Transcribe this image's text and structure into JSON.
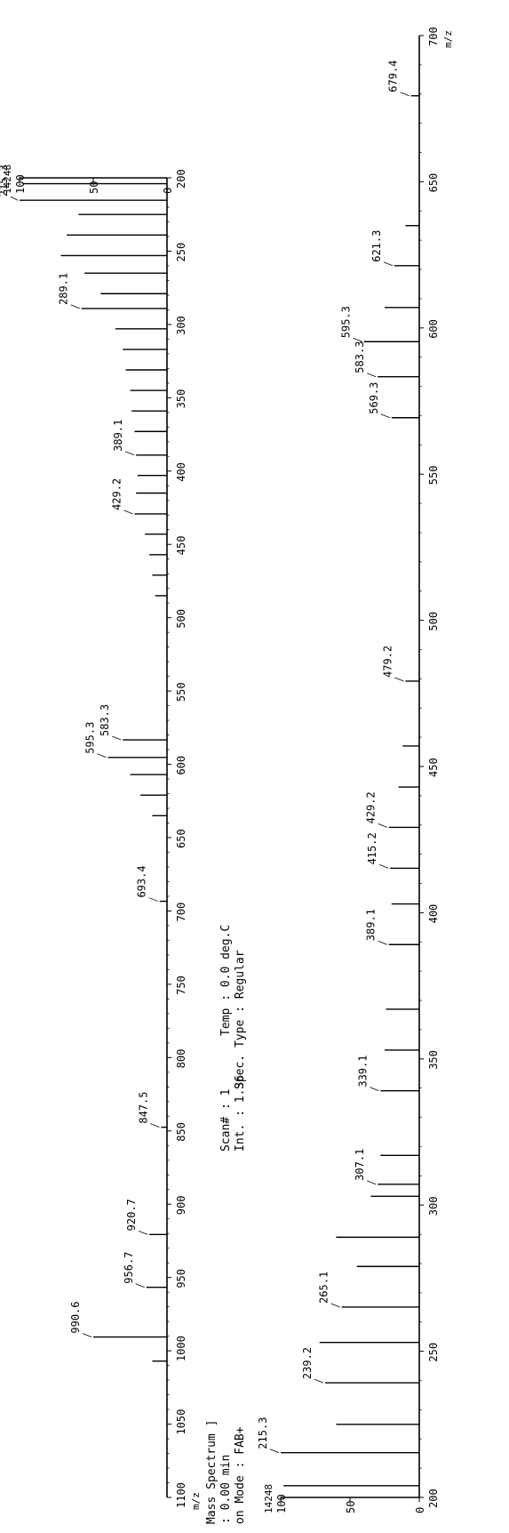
{
  "header": {
    "line1": "Mass Spectrum ]",
    "line2": ": 0.00 min",
    "line3": "on Mode : FAB+",
    "scan": "Scan# : 1",
    "int": "Int. : 1.36",
    "temp": "Temp : 0.0 deg.C",
    "spec_type": "Spec. Type : Regular"
  },
  "chart_data": [
    {
      "type": "bar",
      "title": "",
      "xlabel": "m/z",
      "ylabel": "",
      "xlim": [
        200,
        1100
      ],
      "ylim": [
        0,
        100
      ],
      "max_intensity_label": "14248",
      "xticks": [
        "200",
        "250",
        "300",
        "350",
        "400",
        "450",
        "500",
        "550",
        "600",
        "650",
        "700",
        "750",
        "800",
        "850",
        "900",
        "950",
        "1000",
        "1050",
        "1100"
      ],
      "yticks": [
        "0",
        "50",
        "100"
      ],
      "peaks": [
        {
          "x": 204,
          "y": 98
        },
        {
          "x": 215.3,
          "y": 100
        },
        {
          "x": 225,
          "y": 60
        },
        {
          "x": 239,
          "y": 68
        },
        {
          "x": 253,
          "y": 72
        },
        {
          "x": 265,
          "y": 56
        },
        {
          "x": 279,
          "y": 45
        },
        {
          "x": 289.1,
          "y": 58
        },
        {
          "x": 303,
          "y": 35
        },
        {
          "x": 317,
          "y": 30
        },
        {
          "x": 331,
          "y": 28
        },
        {
          "x": 345,
          "y": 25
        },
        {
          "x": 359,
          "y": 24
        },
        {
          "x": 373,
          "y": 22
        },
        {
          "x": 389.1,
          "y": 21
        },
        {
          "x": 403,
          "y": 20
        },
        {
          "x": 415,
          "y": 21
        },
        {
          "x": 429.2,
          "y": 22
        },
        {
          "x": 443,
          "y": 15
        },
        {
          "x": 457,
          "y": 12
        },
        {
          "x": 471,
          "y": 10
        },
        {
          "x": 485,
          "y": 8
        },
        {
          "x": 583.3,
          "y": 30
        },
        {
          "x": 595.3,
          "y": 40
        },
        {
          "x": 607,
          "y": 25
        },
        {
          "x": 621,
          "y": 18
        },
        {
          "x": 635,
          "y": 10
        },
        {
          "x": 693.4,
          "y": 5
        },
        {
          "x": 847.5,
          "y": 4
        },
        {
          "x": 920.7,
          "y": 12
        },
        {
          "x": 956.7,
          "y": 14
        },
        {
          "x": 990.6,
          "y": 50
        },
        {
          "x": 1007,
          "y": 10
        }
      ],
      "annotations": [
        {
          "x": 215.3,
          "y": 100,
          "label": "215.3"
        },
        {
          "x": 289.1,
          "y": 58,
          "label": "289.1"
        },
        {
          "x": 389.1,
          "y": 21,
          "label": "389.1"
        },
        {
          "x": 429.2,
          "y": 22,
          "label": "429.2"
        },
        {
          "x": 583.3,
          "y": 30,
          "label": "583.3"
        },
        {
          "x": 595.3,
          "y": 40,
          "label": "595.3"
        },
        {
          "x": 693.4,
          "y": 5,
          "label": "693.4"
        },
        {
          "x": 847.5,
          "y": 4,
          "label": "847.5"
        },
        {
          "x": 920.7,
          "y": 12,
          "label": "920.7"
        },
        {
          "x": 956.7,
          "y": 14,
          "label": "956.7"
        },
        {
          "x": 990.6,
          "y": 50,
          "label": "990.6"
        }
      ]
    },
    {
      "type": "bar",
      "title": "",
      "xlabel": "m/z",
      "ylabel": "",
      "xlim": [
        200,
        700
      ],
      "ylim": [
        0,
        100
      ],
      "max_intensity_label": "14248",
      "xticks": [
        "200",
        "250",
        "300",
        "350",
        "400",
        "450",
        "500",
        "550",
        "600",
        "650",
        "700"
      ],
      "yticks": [
        "0",
        "50",
        "100"
      ],
      "peaks": [
        {
          "x": 204,
          "y": 98
        },
        {
          "x": 215.3,
          "y": 100
        },
        {
          "x": 225,
          "y": 60
        },
        {
          "x": 239.2,
          "y": 68
        },
        {
          "x": 253,
          "y": 72
        },
        {
          "x": 265.1,
          "y": 56
        },
        {
          "x": 279,
          "y": 45
        },
        {
          "x": 289,
          "y": 60
        },
        {
          "x": 303,
          "y": 35
        },
        {
          "x": 307.1,
          "y": 30
        },
        {
          "x": 317,
          "y": 28
        },
        {
          "x": 339.1,
          "y": 28
        },
        {
          "x": 353,
          "y": 25
        },
        {
          "x": 367,
          "y": 24
        },
        {
          "x": 389.1,
          "y": 22
        },
        {
          "x": 403,
          "y": 20
        },
        {
          "x": 415.2,
          "y": 21
        },
        {
          "x": 429.2,
          "y": 22
        },
        {
          "x": 443,
          "y": 15
        },
        {
          "x": 457,
          "y": 12
        },
        {
          "x": 479.2,
          "y": 10
        },
        {
          "x": 569.3,
          "y": 20
        },
        {
          "x": 583.3,
          "y": 30
        },
        {
          "x": 595.3,
          "y": 40
        },
        {
          "x": 607,
          "y": 25
        },
        {
          "x": 621.3,
          "y": 18
        },
        {
          "x": 635,
          "y": 10
        },
        {
          "x": 679.4,
          "y": 6
        }
      ],
      "annotations": [
        {
          "x": 215.3,
          "y": 100,
          "label": "215.3"
        },
        {
          "x": 239.2,
          "y": 68,
          "label": "239.2"
        },
        {
          "x": 265.1,
          "y": 56,
          "label": "265.1"
        },
        {
          "x": 307.1,
          "y": 30,
          "label": "307.1"
        },
        {
          "x": 339.1,
          "y": 28,
          "label": "339.1"
        },
        {
          "x": 389.1,
          "y": 22,
          "label": "389.1"
        },
        {
          "x": 415.2,
          "y": 21,
          "label": "415.2"
        },
        {
          "x": 429.2,
          "y": 22,
          "label": "429.2"
        },
        {
          "x": 479.2,
          "y": 10,
          "label": "479.2"
        },
        {
          "x": 569.3,
          "y": 20,
          "label": "569.3"
        },
        {
          "x": 583.3,
          "y": 30,
          "label": "583.3"
        },
        {
          "x": 595.3,
          "y": 40,
          "label": "595.3"
        },
        {
          "x": 621.3,
          "y": 18,
          "label": "621.3"
        },
        {
          "x": 679.4,
          "y": 6,
          "label": "679.4"
        }
      ]
    }
  ]
}
